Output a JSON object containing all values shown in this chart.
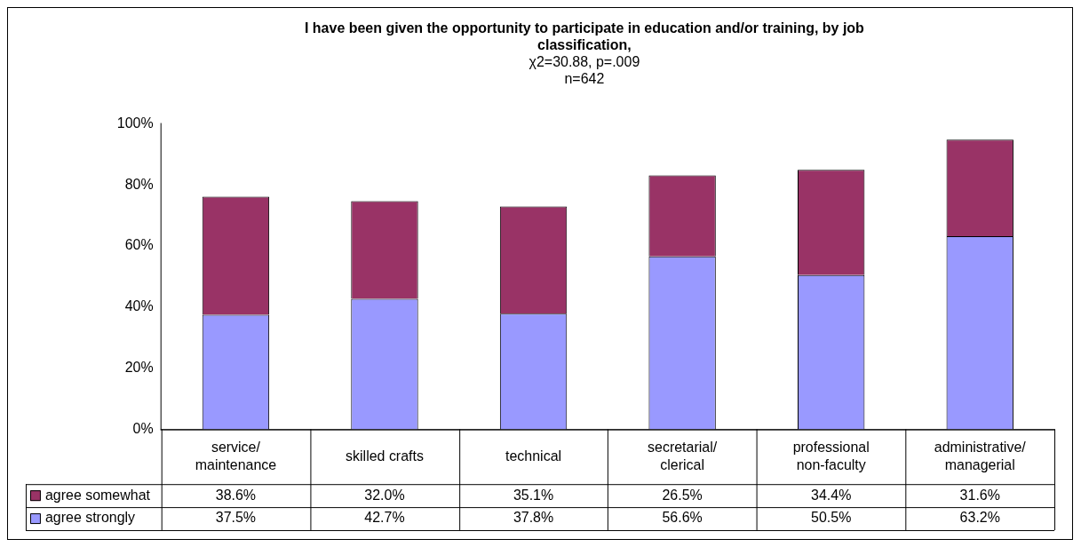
{
  "chart_data": {
    "type": "bar",
    "title": "I have been given the opportunity to participate in education and/or training, by job classification,",
    "subtitle": "χ2=30.88, p=.009\nn=642",
    "categories": [
      "service/maintenance",
      "skilled crafts",
      "technical",
      "secretarial/clerical",
      "professional non-faculty",
      "administrative/managerial"
    ],
    "series": [
      {
        "name": "agree strongly",
        "color": "#9999ff",
        "values": [
          37.5,
          42.7,
          37.8,
          56.6,
          50.5,
          63.2
        ],
        "value_labels": [
          "37.5%",
          "42.7%",
          "37.8%",
          "56.6%",
          "50.5%",
          "63.2%"
        ]
      },
      {
        "name": "agree somewhat",
        "color": "#993366",
        "values": [
          38.6,
          32.0,
          35.1,
          26.5,
          34.4,
          31.6
        ],
        "value_labels": [
          "38.6%",
          "32.0%",
          "35.1%",
          "26.5%",
          "34.4%",
          "31.6%"
        ]
      }
    ],
    "stacked": true,
    "ylim": [
      0,
      100
    ],
    "yticks": [
      {
        "value": 0,
        "label": "0%"
      },
      {
        "value": 20,
        "label": "20%"
      },
      {
        "value": 40,
        "label": "40%"
      },
      {
        "value": 60,
        "label": "60%"
      },
      {
        "value": 80,
        "label": "80%"
      },
      {
        "value": 100,
        "label": "100%"
      }
    ],
    "grid": false,
    "legend": "bottom"
  }
}
